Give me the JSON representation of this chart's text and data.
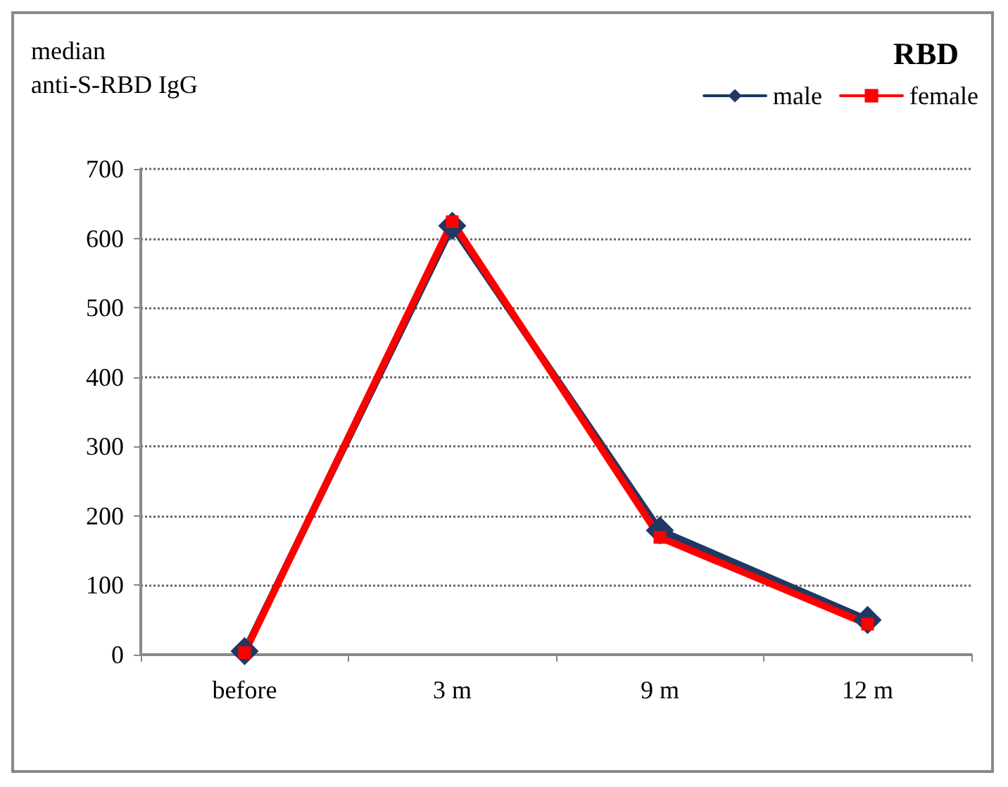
{
  "chart_data": {
    "type": "line",
    "title": "RBD",
    "ylabel": "median\nanti-S-RBD IgG",
    "categories": [
      "before",
      "3 m",
      "9 m",
      "12 m"
    ],
    "series": [
      {
        "name": "male",
        "color": "#1f3864",
        "marker": "diamond",
        "values": [
          5,
          618,
          179,
          50
        ]
      },
      {
        "name": "female",
        "color": "#ff0000",
        "marker": "square",
        "values": [
          3,
          624,
          169,
          44
        ]
      }
    ],
    "ylim": [
      0,
      700
    ],
    "yticks": [
      0,
      100,
      200,
      300,
      400,
      500,
      600,
      700
    ],
    "grid": "y",
    "legend": "top right",
    "line_style": "solid"
  }
}
